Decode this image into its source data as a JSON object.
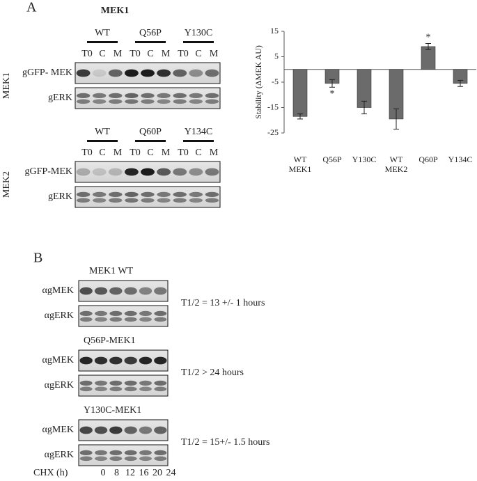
{
  "panel_a": {
    "label": "A",
    "mek1": {
      "title": "MEK1",
      "side_label": "MEK1",
      "groups": [
        "WT",
        "Q56P",
        "Y130C"
      ],
      "lanes": [
        "T0",
        "C",
        "M"
      ],
      "rows": [
        "gGFP- MEK",
        "gERK"
      ]
    },
    "mek2": {
      "side_label": "MEK2",
      "groups": [
        "WT",
        "Q60P",
        "Y134C"
      ],
      "lanes": [
        "T0",
        "C",
        "M"
      ],
      "rows": [
        "gGFP-MEK",
        "gERK"
      ]
    }
  },
  "chart_data": {
    "type": "bar",
    "ylabel": "Stability (ΔMEK AU)",
    "categories": [
      [
        "WT",
        "MEK1"
      ],
      [
        "Q56P"
      ],
      [
        "Y130C"
      ],
      [
        "WT",
        "MEK2"
      ],
      [
        "Q60P"
      ],
      [
        "Y134C"
      ]
    ],
    "values": [
      -18.5,
      -5.5,
      -15,
      -19.5,
      9,
      -5.5
    ],
    "errors": [
      1,
      1.5,
      2.5,
      4,
      1.2,
      1.2
    ],
    "significance": [
      null,
      "*",
      null,
      null,
      "*",
      null
    ],
    "color": "#6b6b6b",
    "ylim": [
      -25,
      15
    ],
    "yticks": [
      15,
      5,
      -5,
      -15,
      -25
    ],
    "grid": false
  },
  "panel_b": {
    "label": "B",
    "blots": [
      {
        "title": "MEK1 WT",
        "rows": [
          "αgMEK",
          "αgERK"
        ],
        "half_life": "T1/2 = 13 +/- 1 hours"
      },
      {
        "title": "Q56P-MEK1",
        "rows": [
          "αgMEK",
          "αgERK"
        ],
        "half_life": "T1/2 > 24 hours"
      },
      {
        "title": "Y130C-MEK1",
        "rows": [
          "αgMEK",
          "αgERK"
        ],
        "half_life": "T1/2 = 15+/- 1.5 hours"
      }
    ],
    "time_label": "CHX (h)",
    "times": [
      0,
      8,
      12,
      16,
      20,
      24
    ]
  }
}
